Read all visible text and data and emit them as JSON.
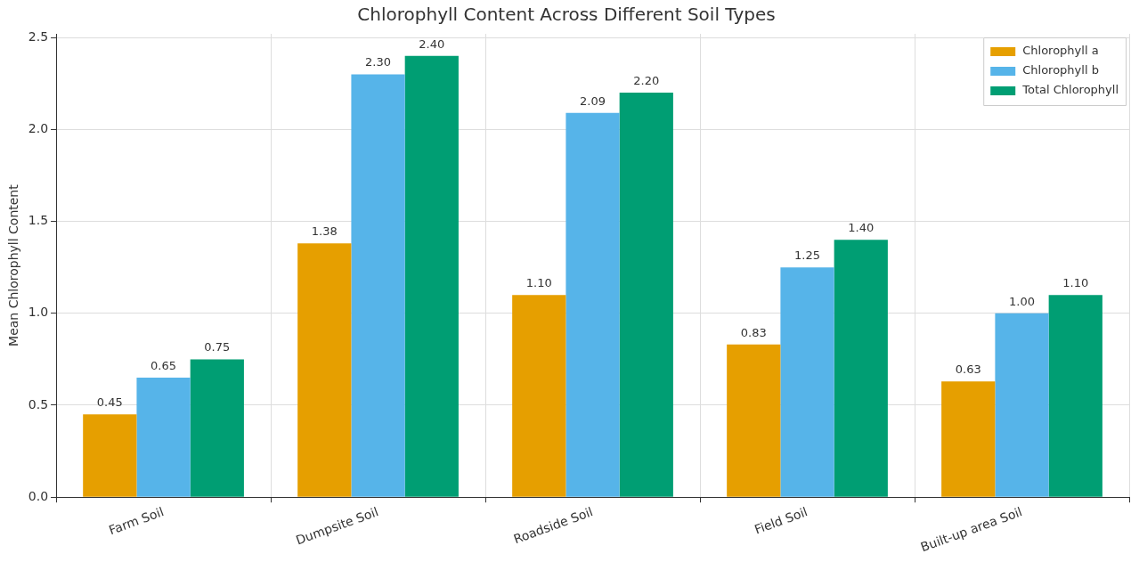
{
  "chart_data": {
    "type": "bar",
    "title": "Chlorophyll Content Across Different Soil Types",
    "ylabel": "Mean Chlorophyll Content",
    "categories": [
      "Farm Soil",
      "Dumpsite Soil",
      "Roadside Soil",
      "Field Soil",
      "Built-up area Soil"
    ],
    "series": [
      {
        "name": "Chlorophyll a",
        "color": "#e69f00",
        "values": [
          0.45,
          1.38,
          1.1,
          0.83,
          0.63
        ],
        "value_labels": [
          "0.45",
          "1.38",
          "1.10",
          "0.83",
          "0.63"
        ]
      },
      {
        "name": "Chlorophyll b",
        "color": "#56b4e9",
        "values": [
          0.65,
          2.3,
          2.09,
          1.25,
          1.0
        ],
        "value_labels": [
          "0.65",
          "2.30",
          "2.09",
          "1.25",
          "1.00"
        ]
      },
      {
        "name": "Total Chlorophyll",
        "color": "#009e73",
        "values": [
          0.75,
          2.4,
          2.2,
          1.4,
          1.1
        ],
        "value_labels": [
          "0.75",
          "2.40",
          "2.20",
          "1.40",
          "1.10"
        ]
      }
    ],
    "ylim": [
      0,
      2.52
    ],
    "yticks": [
      {
        "value": 0,
        "label": "0.0"
      },
      {
        "value": 0.5,
        "label": "0.5"
      },
      {
        "value": 1,
        "label": "1.0"
      },
      {
        "value": 1.5,
        "label": "1.5"
      },
      {
        "value": 2,
        "label": "2.0"
      },
      {
        "value": 2.5,
        "label": "2.5"
      }
    ],
    "grid": true,
    "legend": "top right"
  }
}
